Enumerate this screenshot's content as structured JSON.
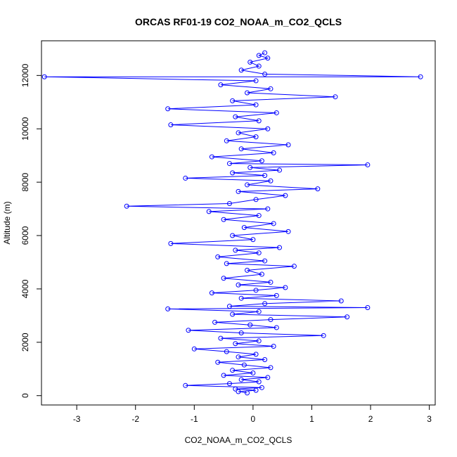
{
  "chart_data": {
    "type": "scatter",
    "title": "ORCAS RF01-19 CO2_NOAA_m_CO2_QCLS",
    "xlabel": "CO2_NOAA_m_CO2_QCLS",
    "ylabel": "Altitude (m)",
    "xlim": [
      -3.6,
      3.1
    ],
    "ylim": [
      -350,
      13300
    ],
    "x_ticks": [
      -3,
      -2,
      -1,
      0,
      1,
      2,
      3
    ],
    "y_ticks": [
      0,
      2000,
      4000,
      6000,
      8000,
      10000,
      12000
    ],
    "x_tick_labels": [
      "-3",
      "-2",
      "-1",
      "0",
      "1",
      "2",
      "3"
    ],
    "y_tick_labels": [
      "0",
      "2000",
      "4000",
      "6000",
      "8000",
      "10000",
      "12000"
    ],
    "grid": false,
    "legend": "none",
    "marker": "open-circle",
    "connected": true,
    "color": "#0000ff",
    "series": [
      {
        "points": [
          [
            -0.1,
            100
          ],
          [
            -0.25,
            150
          ],
          [
            0.05,
            200
          ],
          [
            -0.3,
            250
          ],
          [
            0.15,
            300
          ],
          [
            -1.15,
            380
          ],
          [
            -0.4,
            450
          ],
          [
            0.1,
            520
          ],
          [
            -0.2,
            600
          ],
          [
            0.25,
            680
          ],
          [
            -0.5,
            760
          ],
          [
            0.0,
            850
          ],
          [
            -0.35,
            950
          ],
          [
            0.3,
            1050
          ],
          [
            -0.15,
            1150
          ],
          [
            -0.6,
            1250
          ],
          [
            0.2,
            1350
          ],
          [
            -0.25,
            1450
          ],
          [
            0.05,
            1550
          ],
          [
            -0.45,
            1650
          ],
          [
            -1.0,
            1750
          ],
          [
            0.35,
            1850
          ],
          [
            -0.3,
            1950
          ],
          [
            0.1,
            2050
          ],
          [
            -0.55,
            2150
          ],
          [
            1.2,
            2250
          ],
          [
            -0.2,
            2350
          ],
          [
            -1.1,
            2450
          ],
          [
            0.4,
            2550
          ],
          [
            -0.05,
            2650
          ],
          [
            -0.65,
            2750
          ],
          [
            0.3,
            2850
          ],
          [
            1.6,
            2950
          ],
          [
            -0.35,
            3050
          ],
          [
            0.1,
            3150
          ],
          [
            -1.45,
            3250
          ],
          [
            1.95,
            3300
          ],
          [
            -0.4,
            3350
          ],
          [
            0.2,
            3450
          ],
          [
            1.5,
            3550
          ],
          [
            -0.2,
            3650
          ],
          [
            0.4,
            3750
          ],
          [
            -0.7,
            3850
          ],
          [
            0.05,
            3950
          ],
          [
            0.55,
            4050
          ],
          [
            -0.25,
            4150
          ],
          [
            0.3,
            4250
          ],
          [
            -0.5,
            4400
          ],
          [
            0.15,
            4550
          ],
          [
            -0.1,
            4700
          ],
          [
            0.7,
            4850
          ],
          [
            -0.45,
            4950
          ],
          [
            0.2,
            5050
          ],
          [
            -0.6,
            5200
          ],
          [
            0.1,
            5350
          ],
          [
            -0.3,
            5450
          ],
          [
            0.45,
            5550
          ],
          [
            -1.4,
            5700
          ],
          [
            0.0,
            5850
          ],
          [
            -0.35,
            6000
          ],
          [
            0.6,
            6150
          ],
          [
            -0.15,
            6300
          ],
          [
            0.35,
            6450
          ],
          [
            -0.5,
            6600
          ],
          [
            0.1,
            6750
          ],
          [
            -0.75,
            6900
          ],
          [
            0.25,
            7000
          ],
          [
            -2.15,
            7100
          ],
          [
            -0.4,
            7200
          ],
          [
            0.05,
            7350
          ],
          [
            0.55,
            7500
          ],
          [
            -0.25,
            7650
          ],
          [
            1.1,
            7750
          ],
          [
            -0.1,
            7900
          ],
          [
            0.3,
            8050
          ],
          [
            -1.15,
            8150
          ],
          [
            0.2,
            8250
          ],
          [
            -0.35,
            8350
          ],
          [
            0.45,
            8450
          ],
          [
            -0.05,
            8550
          ],
          [
            1.95,
            8650
          ],
          [
            -0.4,
            8700
          ],
          [
            0.15,
            8800
          ],
          [
            -0.7,
            8950
          ],
          [
            0.35,
            9100
          ],
          [
            -0.2,
            9250
          ],
          [
            0.6,
            9400
          ],
          [
            -0.45,
            9550
          ],
          [
            0.05,
            9700
          ],
          [
            -0.25,
            9850
          ],
          [
            0.25,
            10000
          ],
          [
            -1.4,
            10150
          ],
          [
            0.1,
            10300
          ],
          [
            -0.3,
            10450
          ],
          [
            0.4,
            10600
          ],
          [
            -1.45,
            10750
          ],
          [
            0.05,
            10900
          ],
          [
            -0.35,
            11050
          ],
          [
            1.4,
            11200
          ],
          [
            -0.1,
            11350
          ],
          [
            0.3,
            11500
          ],
          [
            -0.55,
            11650
          ],
          [
            0.05,
            11800
          ],
          [
            -3.55,
            11950
          ],
          [
            2.85,
            11950
          ],
          [
            0.2,
            12050
          ],
          [
            -0.2,
            12200
          ],
          [
            0.1,
            12350
          ],
          [
            -0.05,
            12500
          ],
          [
            0.25,
            12650
          ],
          [
            0.1,
            12750
          ],
          [
            0.2,
            12850
          ]
        ]
      }
    ]
  }
}
